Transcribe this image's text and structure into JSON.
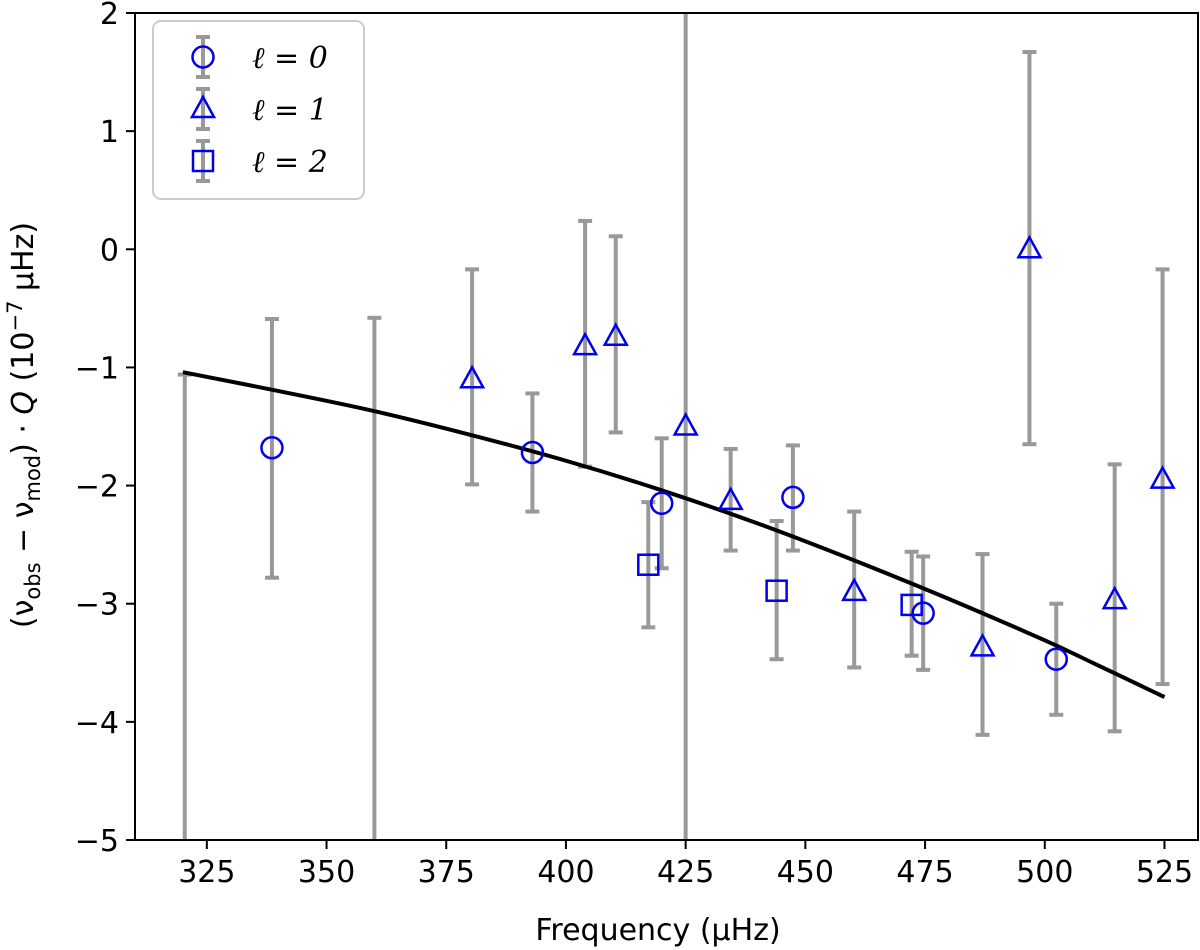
{
  "chart_data": {
    "type": "scatter",
    "xlabel": "Frequency (μHz)",
    "ylabel": {
      "prefix": "(ν",
      "sub1": "obs",
      "minus": " − ν",
      "sub2": "mod",
      "mid": ") · ",
      "q": "Q",
      "units_pre": " (10",
      "exp": "−7",
      "units_post": " μHz)"
    },
    "xlim": [
      310,
      532
    ],
    "ylim": [
      -5,
      2
    ],
    "xticks": [
      325,
      350,
      375,
      400,
      425,
      450,
      475,
      500,
      525
    ],
    "yticks": [
      -5,
      -4,
      -3,
      -2,
      -1,
      0,
      1,
      2
    ],
    "ytick_labels": [
      "−5",
      "−4",
      "−3",
      "−2",
      "−1",
      "0",
      "1",
      "2"
    ],
    "legend_position": "upper-left",
    "colors": {
      "marker": "#0000ee",
      "errorbar": "#999999",
      "curve": "#000000"
    },
    "series": [
      {
        "name": "ℓ = 0",
        "marker": "circle",
        "points": [
          {
            "x": 338.6,
            "y": -1.68,
            "ylo": -2.78,
            "yhi": -0.59
          },
          {
            "x": 393.0,
            "y": -1.72,
            "ylo": -2.22,
            "yhi": -1.22
          },
          {
            "x": 420.0,
            "y": -2.15,
            "ylo": -2.7,
            "yhi": -1.6
          },
          {
            "x": 447.4,
            "y": -2.1,
            "ylo": -2.55,
            "yhi": -1.66
          },
          {
            "x": 474.6,
            "y": -3.08,
            "ylo": -3.56,
            "yhi": -2.6
          },
          {
            "x": 502.4,
            "y": -3.47,
            "ylo": -3.94,
            "yhi": -3.0
          }
        ]
      },
      {
        "name": "ℓ = 1",
        "marker": "triangle",
        "points": [
          {
            "x": 380.4,
            "y": -1.1,
            "ylo": -1.99,
            "yhi": -0.17
          },
          {
            "x": 404.0,
            "y": -0.82,
            "ylo": -1.84,
            "yhi": 0.24
          },
          {
            "x": 410.4,
            "y": -0.74,
            "ylo": -1.55,
            "yhi": 0.11
          },
          {
            "x": 425.0,
            "y": -1.5,
            "ylo": -5.0,
            "yhi": 2.0
          },
          {
            "x": 434.4,
            "y": -2.13,
            "ylo": -2.55,
            "yhi": -1.69
          },
          {
            "x": 460.2,
            "y": -2.9,
            "ylo": -3.54,
            "yhi": -2.22
          },
          {
            "x": 487.0,
            "y": -3.37,
            "ylo": -4.11,
            "yhi": -2.58
          },
          {
            "x": 496.8,
            "y": 0.0,
            "ylo": -1.65,
            "yhi": 1.67
          },
          {
            "x": 514.6,
            "y": -2.97,
            "ylo": -4.08,
            "yhi": -1.82
          },
          {
            "x": 524.6,
            "y": -1.95,
            "ylo": -3.68,
            "yhi": -0.17
          }
        ]
      },
      {
        "name": "ℓ = 2",
        "marker": "square",
        "points": [
          {
            "x": 417.2,
            "y": -2.67,
            "ylo": -3.2,
            "yhi": -2.14
          },
          {
            "x": 444.0,
            "y": -2.89,
            "ylo": -3.47,
            "yhi": -2.3
          },
          {
            "x": 472.2,
            "y": -3.01,
            "ylo": -3.44,
            "yhi": -2.56
          }
        ]
      }
    ],
    "extra_errorbars": [
      {
        "x": 320.4,
        "ylo": -5.0,
        "yhi": -1.06
      },
      {
        "x": 360.0,
        "ylo": -5.0,
        "yhi": -0.58
      }
    ],
    "curve": {
      "x": [
        320,
        340,
        360,
        380,
        400,
        420,
        440,
        460,
        480,
        500,
        510,
        525
      ],
      "y": [
        -1.04,
        -1.2,
        -1.37,
        -1.57,
        -1.79,
        -2.04,
        -2.32,
        -2.63,
        -2.96,
        -3.31,
        -3.5,
        -3.79
      ]
    }
  }
}
